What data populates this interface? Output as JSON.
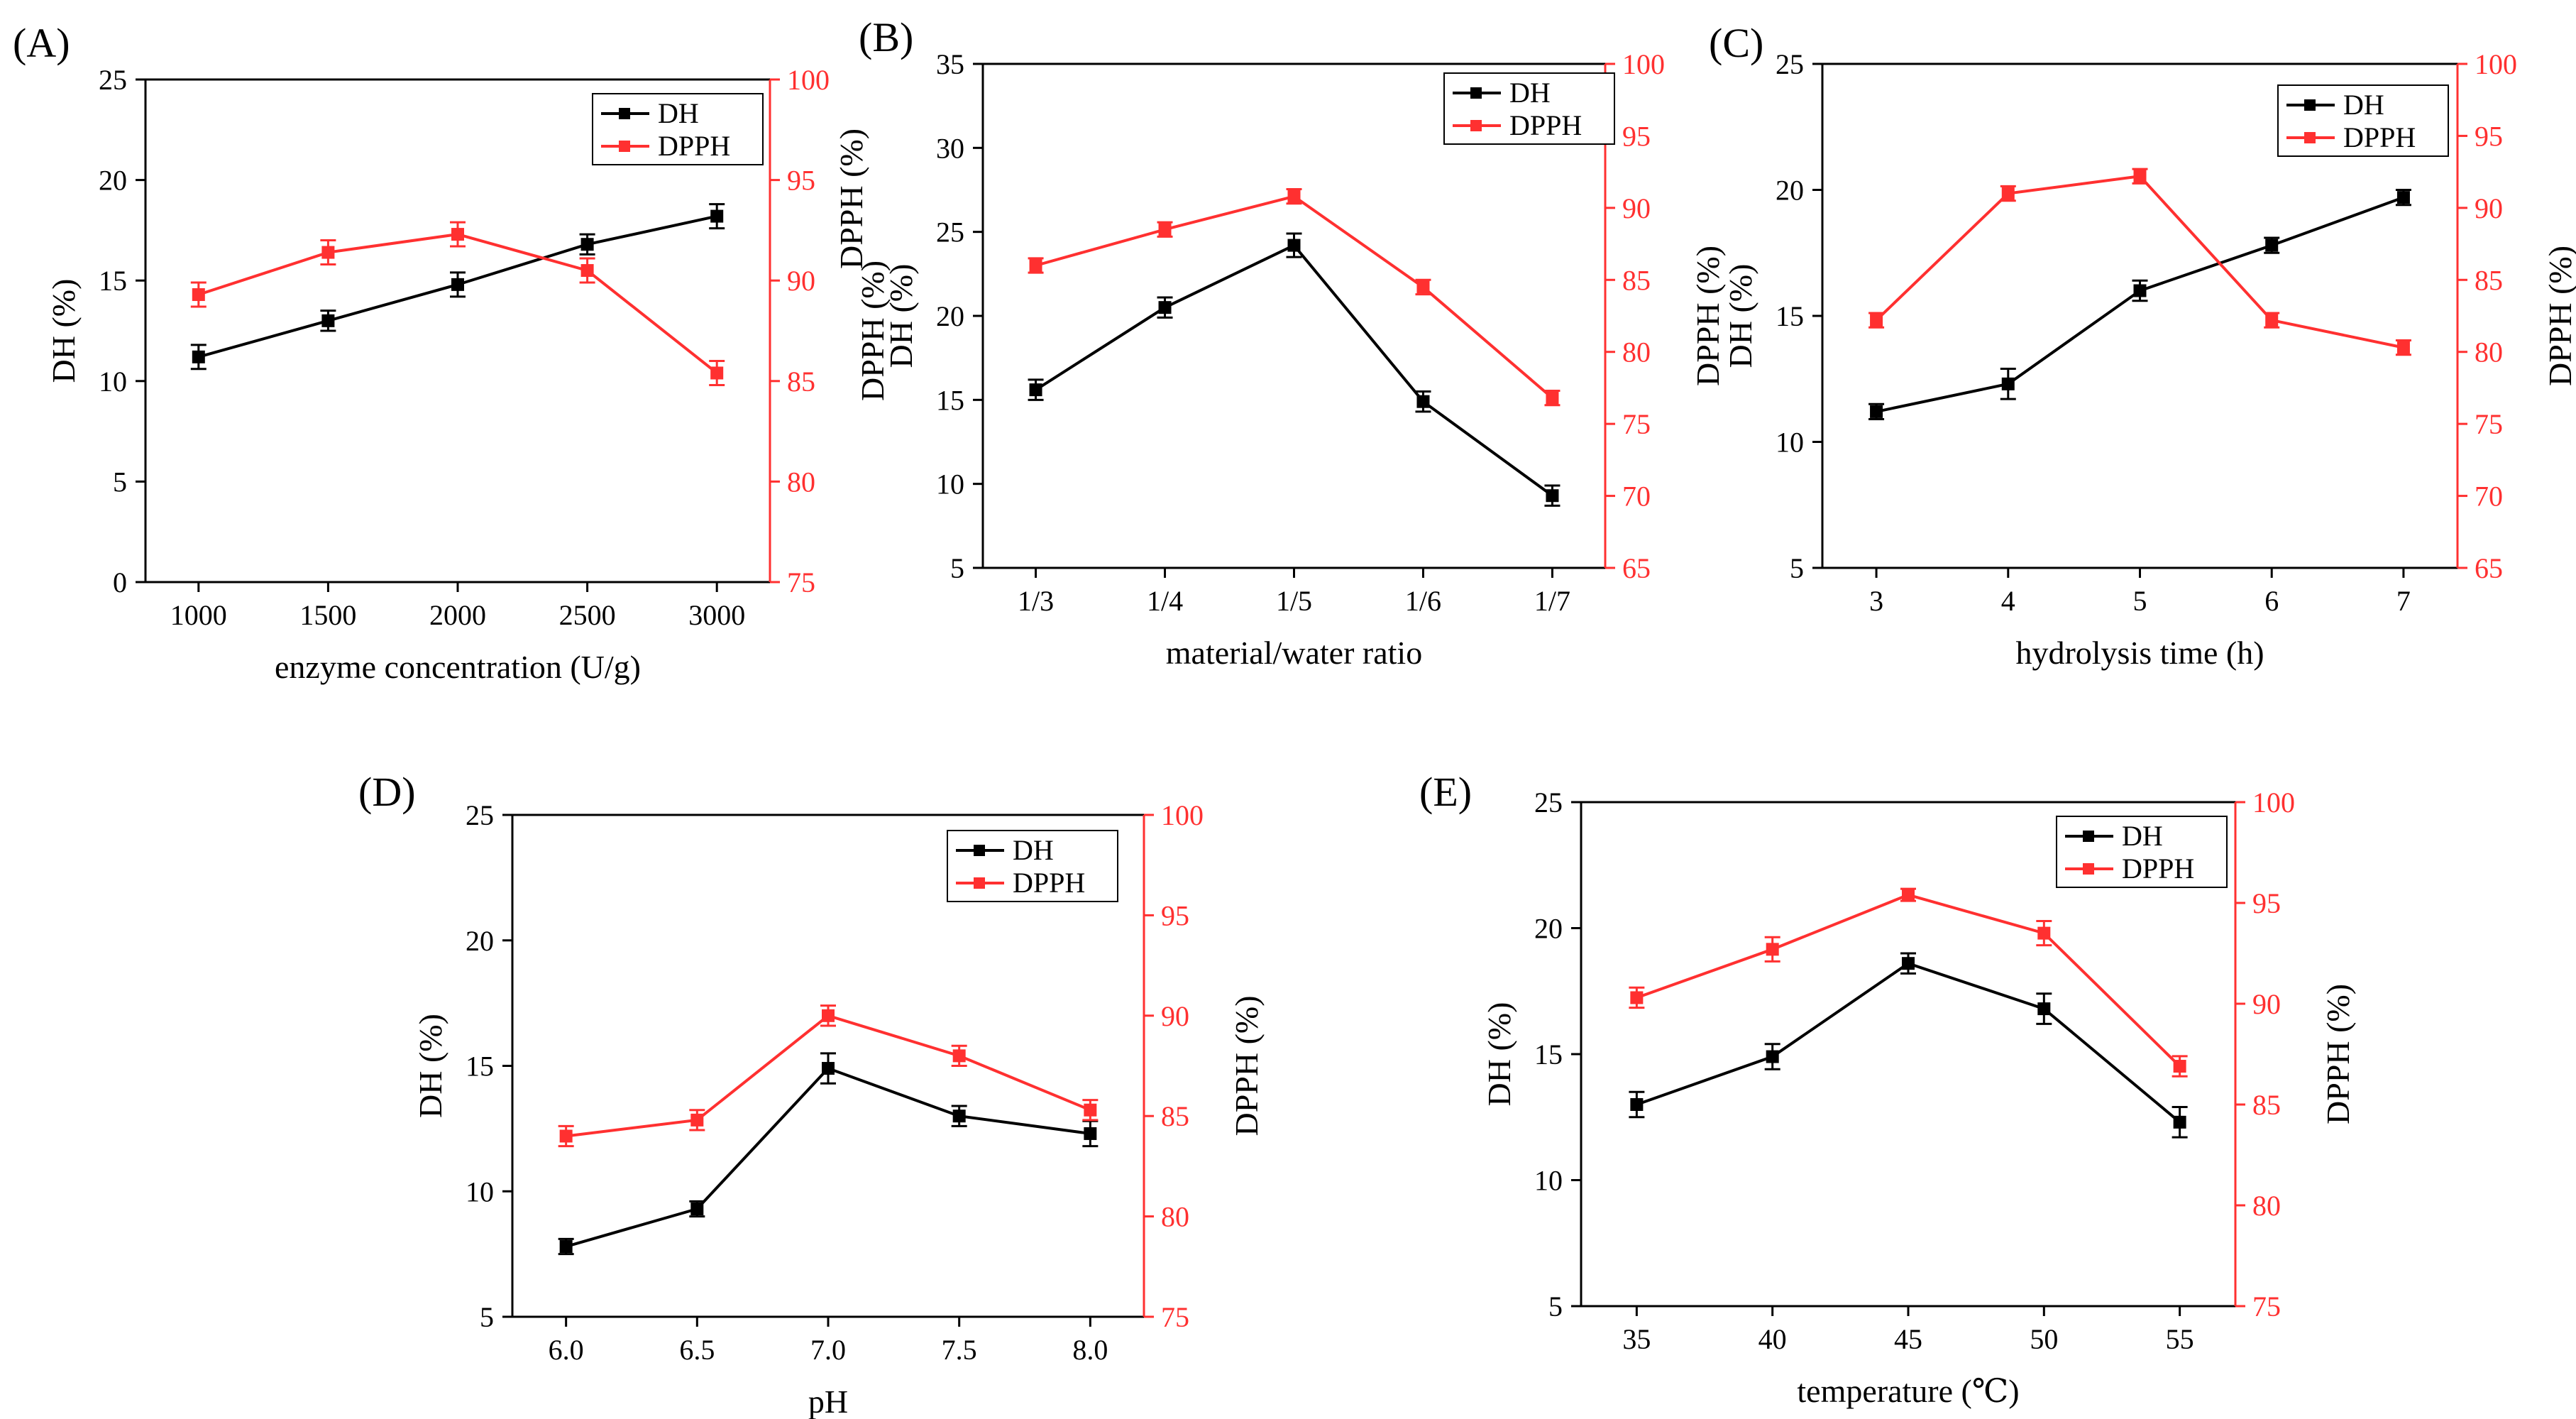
{
  "colors": {
    "dh": "#000000",
    "dpph": "#ff3030",
    "axis": "#000000"
  },
  "legend": {
    "dh_label": "DH",
    "dpph_label": "DPPH"
  },
  "chart_data": [
    {
      "type": "line",
      "panel_label": "(A)",
      "xlabel": "enzyme concentration (U/g)",
      "ylabel_left": "DH (%)",
      "ylabel_right": "DPPH (%)",
      "categories": [
        "1000",
        "1500",
        "2000",
        "2500",
        "3000"
      ],
      "ylim_left": [
        0,
        25
      ],
      "yticks_left": [
        0,
        5,
        10,
        15,
        20,
        25
      ],
      "ylim_right": [
        75,
        100
      ],
      "yticks_right": [
        75,
        80,
        85,
        90,
        95,
        100
      ],
      "legend_position": "top-right",
      "series": [
        {
          "name": "DH",
          "axis": "left",
          "values": [
            11.2,
            13.0,
            14.8,
            16.8,
            18.2
          ],
          "errors": [
            0.6,
            0.5,
            0.6,
            0.5,
            0.6
          ]
        },
        {
          "name": "DPPH",
          "axis": "right",
          "values": [
            89.3,
            91.4,
            92.3,
            90.5,
            85.4
          ],
          "errors": [
            0.6,
            0.6,
            0.6,
            0.6,
            0.6
          ]
        }
      ]
    },
    {
      "type": "line",
      "panel_label": "(B)",
      "xlabel": "material/water ratio",
      "ylabel_left": "DH (%)",
      "ylabel_right": "DPPH (%)",
      "ylabel_middle": "DPPH (%)",
      "categories": [
        "1/3",
        "1/4",
        "1/5",
        "1/6",
        "1/7"
      ],
      "ylim_left": [
        5,
        35
      ],
      "yticks_left": [
        5,
        10,
        15,
        20,
        25,
        30,
        35
      ],
      "ylim_right": [
        65,
        100
      ],
      "yticks_right": [
        65,
        70,
        75,
        80,
        85,
        90,
        95,
        100
      ],
      "legend_position": "top-right",
      "series": [
        {
          "name": "DH",
          "axis": "left",
          "values": [
            15.6,
            20.5,
            24.2,
            14.9,
            9.3
          ],
          "errors": [
            0.6,
            0.6,
            0.7,
            0.6,
            0.6
          ]
        },
        {
          "name": "DPPH",
          "axis": "right",
          "values": [
            86.0,
            88.5,
            90.8,
            84.5,
            76.8
          ],
          "errors": [
            0.5,
            0.5,
            0.5,
            0.5,
            0.5
          ]
        }
      ]
    },
    {
      "type": "line",
      "panel_label": "(C)",
      "xlabel": "hydrolysis time (h)",
      "ylabel_left": "DH (%)",
      "ylabel_right": "DPPH (%)",
      "categories": [
        "3",
        "4",
        "5",
        "6",
        "7"
      ],
      "ylim_left": [
        5,
        25
      ],
      "yticks_left": [
        5,
        10,
        15,
        20,
        25
      ],
      "ylim_right": [
        65,
        100
      ],
      "yticks_right": [
        65,
        70,
        75,
        80,
        85,
        90,
        95,
        100
      ],
      "legend_position": "top-right",
      "series": [
        {
          "name": "DH",
          "axis": "left",
          "values": [
            11.2,
            12.3,
            16.0,
            17.8,
            19.7
          ],
          "errors": [
            0.3,
            0.6,
            0.4,
            0.3,
            0.3
          ]
        },
        {
          "name": "DPPH",
          "axis": "right",
          "values": [
            82.2,
            91.0,
            92.2,
            82.2,
            80.3
          ],
          "errors": [
            0.5,
            0.5,
            0.5,
            0.5,
            0.5
          ]
        }
      ]
    },
    {
      "type": "line",
      "panel_label": "(D)",
      "xlabel": "pH",
      "ylabel_left": "DH (%)",
      "ylabel_right": "DPPH (%)",
      "categories": [
        "6.0",
        "6.5",
        "7.0",
        "7.5",
        "8.0"
      ],
      "ylim_left": [
        5,
        25
      ],
      "yticks_left": [
        5,
        10,
        15,
        20,
        25
      ],
      "ylim_right": [
        75,
        100
      ],
      "yticks_right": [
        75,
        80,
        85,
        90,
        95,
        100
      ],
      "legend_position": "top-right",
      "series": [
        {
          "name": "DH",
          "axis": "left",
          "values": [
            7.8,
            9.3,
            14.9,
            13.0,
            12.3
          ],
          "errors": [
            0.3,
            0.3,
            0.6,
            0.4,
            0.5
          ]
        },
        {
          "name": "DPPH",
          "axis": "right",
          "values": [
            84.0,
            84.8,
            90.0,
            88.0,
            85.3
          ],
          "errors": [
            0.5,
            0.5,
            0.5,
            0.5,
            0.5
          ]
        }
      ]
    },
    {
      "type": "line",
      "panel_label": "(E)",
      "xlabel": "temperature (℃)",
      "ylabel_left": "DH (%)",
      "ylabel_right": "DPPH (%)",
      "categories": [
        "35",
        "40",
        "45",
        "50",
        "55"
      ],
      "ylim_left": [
        5,
        25
      ],
      "yticks_left": [
        5,
        10,
        15,
        20,
        25
      ],
      "ylim_right": [
        75,
        100
      ],
      "yticks_right": [
        75,
        80,
        85,
        90,
        95,
        100
      ],
      "legend_position": "top-right",
      "series": [
        {
          "name": "DH",
          "axis": "left",
          "values": [
            13.0,
            14.9,
            18.6,
            16.8,
            12.3
          ],
          "errors": [
            0.5,
            0.5,
            0.4,
            0.6,
            0.6
          ]
        },
        {
          "name": "DPPH",
          "axis": "right",
          "values": [
            90.3,
            92.7,
            95.4,
            93.5,
            86.9
          ],
          "errors": [
            0.5,
            0.6,
            0.3,
            0.6,
            0.5
          ]
        }
      ]
    }
  ]
}
